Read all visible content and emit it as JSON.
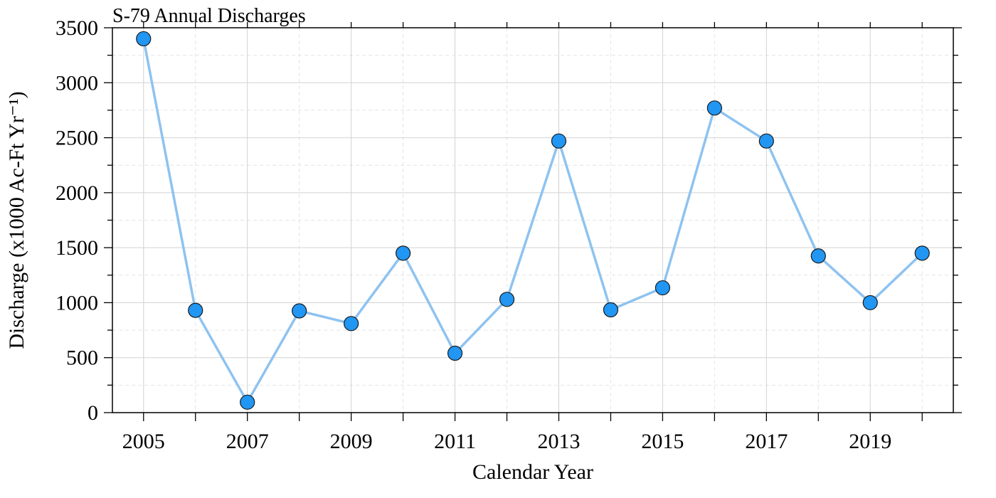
{
  "chart_data": {
    "type": "line",
    "title": "S-79 Annual Discharges",
    "xlabel": "Calendar Year",
    "ylabel": "Discharge (x1000 Ac-Ft Yr⁻¹)",
    "xlim": [
      2004.4,
      2020.6
    ],
    "ylim": [
      0,
      3500
    ],
    "x_ticks": [
      2005,
      2007,
      2009,
      2011,
      2013,
      2015,
      2017,
      2019
    ],
    "x_tick_labels": [
      "2005",
      "2007",
      "2009",
      "2011",
      "2013",
      "2015",
      "2017",
      "2019"
    ],
    "y_ticks": [
      0,
      500,
      1000,
      1500,
      2000,
      2500,
      3000,
      3500
    ],
    "y_tick_labels": [
      "0",
      "500",
      "1000",
      "1500",
      "2000",
      "2500",
      "3000",
      "3500"
    ],
    "grid": true,
    "series": [
      {
        "x": [
          2005,
          2006,
          2007,
          2008,
          2009,
          2010,
          2011,
          2012,
          2013,
          2014,
          2015,
          2016,
          2017,
          2018,
          2019,
          2020
        ],
        "values": [
          3400,
          930,
          95,
          925,
          810,
          1450,
          540,
          1030,
          2470,
          935,
          1135,
          2770,
          2470,
          1425,
          1000,
          1450
        ],
        "line_color": "#8ec3f0",
        "marker_color": "#2196f3"
      }
    ]
  }
}
